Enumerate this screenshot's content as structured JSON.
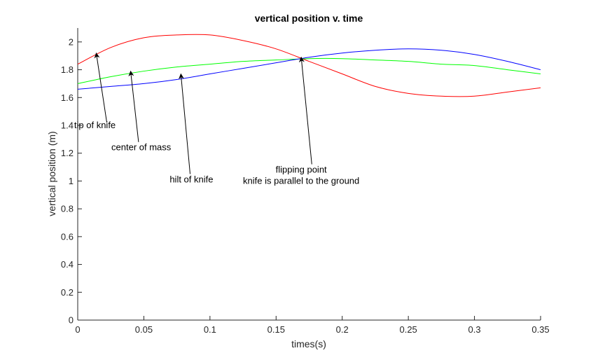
{
  "chart_data": {
    "type": "line",
    "title": "vertical position v. time",
    "xlabel": "times(s)",
    "ylabel": "vertical position (m)",
    "xlim": [
      0,
      0.35
    ],
    "ylim": [
      0,
      2.1
    ],
    "xticks": [
      "0",
      "0.05",
      "0.1",
      "0.15",
      "0.2",
      "0.25",
      "0.3",
      "0.35"
    ],
    "xtick_values": [
      0,
      0.05,
      0.1,
      0.15,
      0.2,
      0.25,
      0.3,
      0.35
    ],
    "yticks": [
      "0",
      "0.2",
      "0.4",
      "0.6",
      "0.8",
      "1",
      "1.2",
      "1.4",
      "1.6",
      "1.8",
      "2"
    ],
    "ytick_values": [
      0,
      0.2,
      0.4,
      0.6,
      0.8,
      1,
      1.2,
      1.4,
      1.6,
      1.8,
      2
    ],
    "grid": false,
    "x": [
      0,
      0.025,
      0.05,
      0.075,
      0.1,
      0.125,
      0.15,
      0.175,
      0.2,
      0.225,
      0.25,
      0.275,
      0.3,
      0.325,
      0.35
    ],
    "series": [
      {
        "color": "#ff0000",
        "values": [
          1.84,
          1.96,
          2.03,
          2.05,
          2.05,
          2.01,
          1.95,
          1.86,
          1.77,
          1.68,
          1.63,
          1.61,
          1.61,
          1.64,
          1.67
        ]
      },
      {
        "color": "#00ff00",
        "values": [
          1.7,
          1.75,
          1.79,
          1.82,
          1.84,
          1.86,
          1.87,
          1.88,
          1.88,
          1.87,
          1.86,
          1.84,
          1.83,
          1.8,
          1.77
        ]
      },
      {
        "color": "#0000ff",
        "values": [
          1.66,
          1.68,
          1.7,
          1.73,
          1.77,
          1.81,
          1.85,
          1.89,
          1.92,
          1.94,
          1.95,
          1.94,
          1.91,
          1.86,
          1.8
        ]
      }
    ],
    "annotations": [
      {
        "lines": [
          "tip of knife"
        ],
        "text_x": 0.013,
        "text_y": 1.38,
        "arrow_from": [
          0.022,
          1.42
        ],
        "arrow_to": [
          0.014,
          1.92
        ]
      },
      {
        "lines": [
          "center of mass"
        ],
        "text_x": 0.048,
        "text_y": 1.22,
        "arrow_from": [
          0.046,
          1.28
        ],
        "arrow_to": [
          0.04,
          1.79
        ]
      },
      {
        "lines": [
          "hilt of knife"
        ],
        "text_x": 0.086,
        "text_y": 0.99,
        "arrow_from": [
          0.085,
          1.05
        ],
        "arrow_to": [
          0.078,
          1.77
        ]
      },
      {
        "lines": [
          "flipping point",
          "knife is parallel to the ground"
        ],
        "text_x": 0.169,
        "text_y": 1.06,
        "arrow_from": [
          0.177,
          1.12
        ],
        "arrow_to": [
          0.169,
          1.89
        ]
      }
    ]
  }
}
